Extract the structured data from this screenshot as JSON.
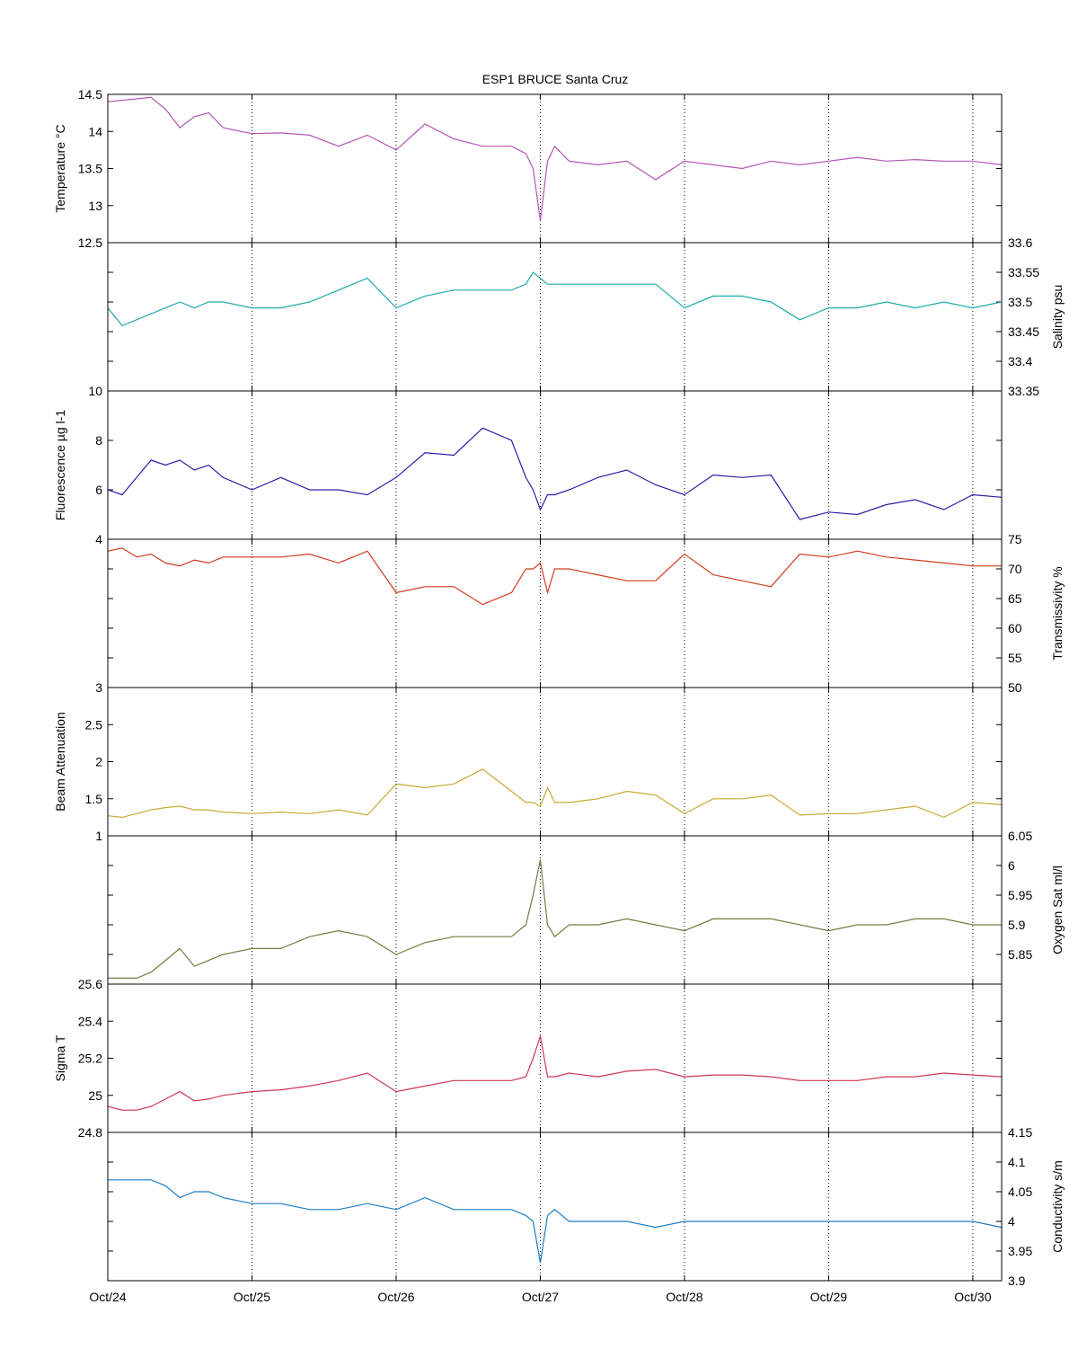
{
  "title": "ESP1 BRUCE Santa Cruz",
  "x_ticks": [
    "Oct/24",
    "Oct/25",
    "Oct/26",
    "Oct/27",
    "Oct/28",
    "Oct/29",
    "Oct/30"
  ],
  "chart_data": [
    {
      "type": "line",
      "ylabel": "Temperature °C",
      "axis_side": "left",
      "color": "#b455b4",
      "xlim": [
        0,
        6.2
      ],
      "ylim": [
        12.5,
        14.5
      ],
      "yticks": [
        "12.5",
        "13",
        "13.5",
        "14",
        "14.5"
      ],
      "grid": "vertical dotted",
      "x": [
        0.0,
        0.1,
        0.2,
        0.3,
        0.4,
        0.5,
        0.6,
        0.7,
        0.8,
        1.0,
        1.2,
        1.4,
        1.6,
        1.8,
        2.0,
        2.2,
        2.4,
        2.6,
        2.8,
        2.9,
        2.95,
        3.0,
        3.05,
        3.1,
        3.2,
        3.4,
        3.6,
        3.8,
        4.0,
        4.2,
        4.4,
        4.6,
        4.8,
        5.0,
        5.2,
        5.4,
        5.6,
        5.8,
        6.0,
        6.2
      ],
      "values": [
        14.4,
        14.42,
        14.44,
        14.46,
        14.3,
        14.05,
        14.2,
        14.25,
        14.05,
        13.97,
        13.98,
        13.95,
        13.8,
        13.95,
        13.75,
        14.1,
        13.9,
        13.8,
        13.8,
        13.7,
        13.5,
        12.8,
        13.6,
        13.8,
        13.6,
        13.55,
        13.6,
        13.35,
        13.6,
        13.55,
        13.5,
        13.6,
        13.55,
        13.6,
        13.65,
        13.6,
        13.62,
        13.6,
        13.6,
        13.55
      ]
    },
    {
      "type": "line",
      "ylabel": "Salinity psu",
      "axis_side": "right",
      "color": "#20aaaa",
      "xlim": [
        0,
        6.2
      ],
      "ylim": [
        33.35,
        33.6
      ],
      "yticks": [
        "33.35",
        "33.4",
        "33.45",
        "33.5",
        "33.55",
        "33.6"
      ],
      "grid": "vertical dotted",
      "x": [
        0.0,
        0.1,
        0.2,
        0.3,
        0.4,
        0.5,
        0.6,
        0.7,
        0.8,
        1.0,
        1.2,
        1.4,
        1.6,
        1.8,
        2.0,
        2.2,
        2.4,
        2.6,
        2.8,
        2.9,
        2.95,
        3.0,
        3.05,
        3.1,
        3.2,
        3.4,
        3.6,
        3.8,
        4.0,
        4.2,
        4.4,
        4.6,
        4.8,
        5.0,
        5.2,
        5.4,
        5.6,
        5.8,
        6.0,
        6.2
      ],
      "values": [
        33.49,
        33.46,
        33.47,
        33.48,
        33.49,
        33.5,
        33.49,
        33.5,
        33.5,
        33.49,
        33.49,
        33.5,
        33.52,
        33.54,
        33.49,
        33.51,
        33.52,
        33.52,
        33.52,
        33.53,
        33.55,
        33.54,
        33.53,
        33.53,
        33.53,
        33.53,
        33.53,
        33.53,
        33.49,
        33.51,
        33.51,
        33.5,
        33.47,
        33.49,
        33.49,
        33.5,
        33.49,
        33.5,
        33.49,
        33.5
      ]
    },
    {
      "type": "line",
      "ylabel": "Fluorescence µg l-1",
      "axis_side": "left",
      "color": "#2d1ea8",
      "xlim": [
        0,
        6.2
      ],
      "ylim": [
        4,
        10
      ],
      "yticks": [
        "4",
        "6",
        "8",
        "10"
      ],
      "grid": "vertical dotted",
      "x": [
        0.0,
        0.1,
        0.2,
        0.3,
        0.4,
        0.5,
        0.6,
        0.7,
        0.8,
        1.0,
        1.2,
        1.4,
        1.6,
        1.8,
        2.0,
        2.2,
        2.4,
        2.6,
        2.8,
        2.9,
        2.95,
        3.0,
        3.05,
        3.1,
        3.2,
        3.4,
        3.6,
        3.8,
        4.0,
        4.2,
        4.4,
        4.6,
        4.8,
        5.0,
        5.2,
        5.4,
        5.6,
        5.8,
        6.0,
        6.2
      ],
      "values": [
        6.0,
        5.8,
        6.5,
        7.2,
        7.0,
        7.2,
        6.8,
        7.0,
        6.5,
        6.0,
        6.5,
        6.0,
        6.0,
        5.8,
        6.5,
        7.5,
        7.4,
        8.5,
        8.0,
        6.5,
        6.0,
        5.2,
        5.8,
        5.8,
        6.0,
        6.5,
        6.8,
        6.2,
        5.8,
        6.6,
        6.5,
        6.6,
        4.8,
        5.1,
        5.0,
        5.4,
        5.6,
        5.2,
        5.8,
        5.7
      ]
    },
    {
      "type": "line",
      "ylabel": "Transmissivity %",
      "axis_side": "right",
      "color": "#d23c1e",
      "xlim": [
        0,
        6.2
      ],
      "ylim": [
        50,
        75
      ],
      "yticks": [
        "50",
        "55",
        "60",
        "65",
        "70",
        "75"
      ],
      "grid": "vertical dotted",
      "x": [
        0.0,
        0.1,
        0.2,
        0.3,
        0.4,
        0.5,
        0.6,
        0.7,
        0.8,
        1.0,
        1.2,
        1.4,
        1.6,
        1.8,
        2.0,
        2.2,
        2.4,
        2.6,
        2.8,
        2.9,
        2.95,
        3.0,
        3.05,
        3.1,
        3.2,
        3.4,
        3.6,
        3.8,
        4.0,
        4.2,
        4.4,
        4.6,
        4.8,
        5.0,
        5.2,
        5.4,
        5.6,
        5.8,
        6.0,
        6.2
      ],
      "values": [
        73.0,
        73.5,
        72.0,
        72.5,
        71.0,
        70.5,
        71.5,
        71.0,
        72.0,
        72.0,
        72.0,
        72.5,
        71.0,
        73.0,
        66.0,
        67.0,
        67.0,
        64.0,
        66.0,
        70.0,
        70.0,
        71.0,
        66.0,
        70.0,
        70.0,
        69.0,
        68.0,
        68.0,
        72.5,
        69.0,
        68.0,
        67.0,
        72.5,
        72.0,
        73.0,
        72.0,
        71.5,
        71.0,
        70.5,
        70.5
      ]
    },
    {
      "type": "line",
      "ylabel": "Beam Attenuation",
      "axis_side": "left",
      "color": "#c8aa32",
      "xlim": [
        0,
        6.2
      ],
      "ylim": [
        1,
        3
      ],
      "yticks": [
        "1",
        "1.5",
        "2",
        "2.5",
        "3"
      ],
      "grid": "vertical dotted",
      "x": [
        0.0,
        0.1,
        0.2,
        0.3,
        0.4,
        0.5,
        0.6,
        0.7,
        0.8,
        1.0,
        1.2,
        1.4,
        1.6,
        1.8,
        2.0,
        2.2,
        2.4,
        2.6,
        2.8,
        2.9,
        2.95,
        3.0,
        3.05,
        3.1,
        3.2,
        3.4,
        3.6,
        3.8,
        4.0,
        4.2,
        4.4,
        4.6,
        4.8,
        5.0,
        5.2,
        5.4,
        5.6,
        5.8,
        6.0,
        6.2
      ],
      "values": [
        1.27,
        1.25,
        1.3,
        1.35,
        1.38,
        1.4,
        1.35,
        1.35,
        1.32,
        1.3,
        1.32,
        1.3,
        1.35,
        1.28,
        1.7,
        1.65,
        1.7,
        1.9,
        1.6,
        1.45,
        1.45,
        1.4,
        1.65,
        1.45,
        1.45,
        1.5,
        1.6,
        1.55,
        1.3,
        1.5,
        1.5,
        1.55,
        1.28,
        1.3,
        1.3,
        1.35,
        1.4,
        1.25,
        1.45,
        1.42
      ]
    },
    {
      "type": "line",
      "ylabel": "Oxygen Sat ml/l",
      "axis_side": "right",
      "color": "#787844",
      "xlim": [
        0,
        6.2
      ],
      "ylim": [
        5.8,
        6.05
      ],
      "yticks": [
        "5.85",
        "5.9",
        "5.95",
        "6",
        "6.05"
      ],
      "grid": "vertical dotted",
      "x": [
        0.0,
        0.1,
        0.2,
        0.3,
        0.4,
        0.5,
        0.6,
        0.7,
        0.8,
        1.0,
        1.2,
        1.4,
        1.6,
        1.8,
        2.0,
        2.2,
        2.4,
        2.6,
        2.8,
        2.9,
        2.95,
        3.0,
        3.05,
        3.1,
        3.2,
        3.4,
        3.6,
        3.8,
        4.0,
        4.2,
        4.4,
        4.6,
        4.8,
        5.0,
        5.2,
        5.4,
        5.6,
        5.8,
        6.0,
        6.2
      ],
      "values": [
        5.81,
        5.81,
        5.81,
        5.82,
        5.84,
        5.86,
        5.83,
        5.84,
        5.85,
        5.86,
        5.86,
        5.88,
        5.89,
        5.88,
        5.85,
        5.87,
        5.88,
        5.88,
        5.88,
        5.9,
        5.95,
        6.01,
        5.9,
        5.88,
        5.9,
        5.9,
        5.91,
        5.9,
        5.89,
        5.91,
        5.91,
        5.91,
        5.9,
        5.89,
        5.9,
        5.9,
        5.91,
        5.91,
        5.9,
        5.9
      ]
    },
    {
      "type": "line",
      "ylabel": "Sigma T",
      "axis_side": "left",
      "color": "#cd3755",
      "xlim": [
        0,
        6.2
      ],
      "ylim": [
        24.8,
        25.6
      ],
      "yticks": [
        "24.8",
        "25",
        "25.2",
        "25.4",
        "25.6"
      ],
      "grid": "vertical dotted",
      "x": [
        0.0,
        0.1,
        0.2,
        0.3,
        0.4,
        0.5,
        0.6,
        0.7,
        0.8,
        1.0,
        1.2,
        1.4,
        1.6,
        1.8,
        2.0,
        2.2,
        2.4,
        2.6,
        2.8,
        2.9,
        2.95,
        3.0,
        3.05,
        3.1,
        3.2,
        3.4,
        3.6,
        3.8,
        4.0,
        4.2,
        4.4,
        4.6,
        4.8,
        5.0,
        5.2,
        5.4,
        5.6,
        5.8,
        6.0,
        6.2
      ],
      "values": [
        24.94,
        24.92,
        24.92,
        24.94,
        24.98,
        25.02,
        24.97,
        24.98,
        25.0,
        25.02,
        25.03,
        25.05,
        25.08,
        25.12,
        25.02,
        25.05,
        25.08,
        25.08,
        25.08,
        25.1,
        25.2,
        25.32,
        25.1,
        25.1,
        25.12,
        25.1,
        25.13,
        25.14,
        25.1,
        25.11,
        25.11,
        25.1,
        25.08,
        25.08,
        25.08,
        25.1,
        25.1,
        25.12,
        25.11,
        25.1
      ]
    },
    {
      "type": "line",
      "ylabel": "Conductivity s/m",
      "axis_side": "right",
      "color": "#1a7ec8",
      "xlim": [
        0,
        6.2
      ],
      "ylim": [
        3.9,
        4.15
      ],
      "yticks": [
        "3.9",
        "3.95",
        "4",
        "4.05",
        "4.1",
        "4.15"
      ],
      "grid": "vertical dotted",
      "x": [
        0.0,
        0.1,
        0.2,
        0.3,
        0.4,
        0.5,
        0.6,
        0.7,
        0.8,
        1.0,
        1.2,
        1.4,
        1.6,
        1.8,
        2.0,
        2.2,
        2.4,
        2.6,
        2.8,
        2.9,
        2.95,
        3.0,
        3.05,
        3.1,
        3.2,
        3.4,
        3.6,
        3.8,
        4.0,
        4.2,
        4.4,
        4.6,
        4.8,
        5.0,
        5.2,
        5.4,
        5.6,
        5.8,
        6.0,
        6.2
      ],
      "values": [
        4.07,
        4.07,
        4.07,
        4.07,
        4.06,
        4.04,
        4.05,
        4.05,
        4.04,
        4.03,
        4.03,
        4.02,
        4.02,
        4.03,
        4.02,
        4.04,
        4.02,
        4.02,
        4.02,
        4.01,
        4.0,
        3.93,
        4.01,
        4.02,
        4.0,
        4.0,
        4.0,
        3.99,
        4.0,
        4.0,
        4.0,
        4.0,
        4.0,
        4.0,
        4.0,
        4.0,
        4.0,
        4.0,
        4.0,
        3.99
      ]
    }
  ]
}
